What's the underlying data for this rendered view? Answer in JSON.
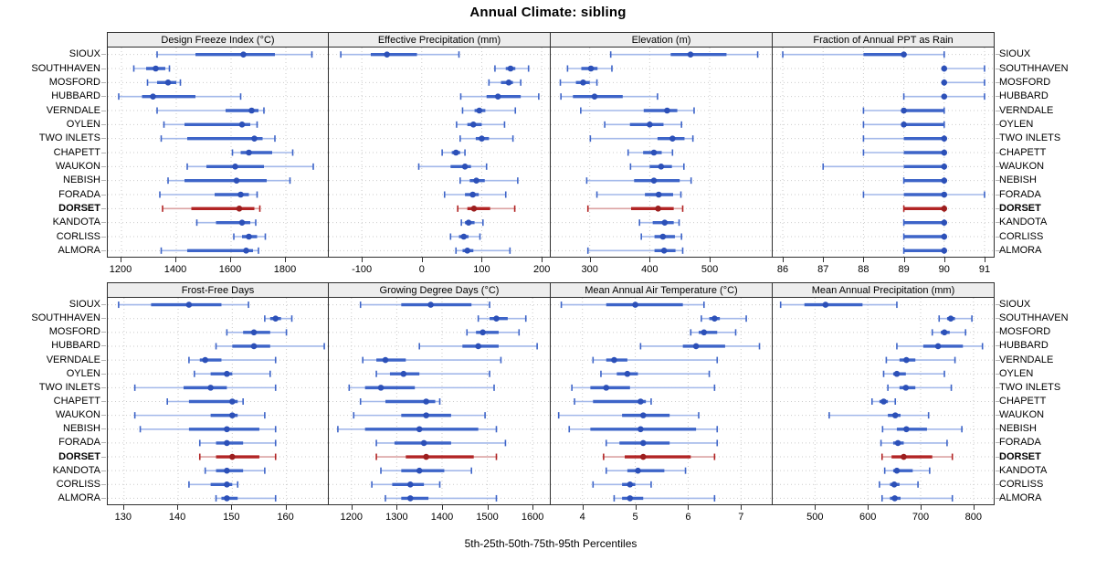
{
  "title": "Annual Climate: sibling",
  "xlabel": "5th-25th-50th-75th-95th Percentiles",
  "sites": [
    "SIOUX",
    "SOUTHHAVEN",
    "MOSFORD",
    "HUBBARD",
    "VERNDALE",
    "OYLEN",
    "TWO INLETS",
    "CHAPETT",
    "WAUKON",
    "NEBISH",
    "FORADA",
    "DORSET",
    "KANDOTA",
    "CORLISS",
    "ALMORA"
  ],
  "highlight_site": "DORSET",
  "colors": {
    "blue": "#3D64C8",
    "blue_light": "#A3B8EA",
    "blue_dark": "#2C50B8",
    "red": "#B22424",
    "red_light": "#DCA3A3",
    "red_dark": "#9C1E1E",
    "strip_bg": "#EDEDED",
    "panel_border": "#2F2F2F",
    "grid": "#CBCBCB",
    "stub": "#B4B4B4"
  },
  "chart_data": {
    "type": "dotplot-percentile-intervals",
    "percentile_labels": [
      "5th",
      "25th",
      "50th",
      "75th",
      "95th"
    ],
    "legend_note": "thin line = 5th-95th, thick line = 25th-75th, dot = 50th percentile",
    "grid": "dotted",
    "layout": {
      "rows": 2,
      "cols": 4
    },
    "panels": [
      {
        "title": "Design Freeze Index (°C)",
        "xlim": [
          1150,
          1960
        ],
        "ticks": [
          1200,
          1400,
          1600,
          1800
        ],
        "values": [
          [
            1330,
            1470,
            1645,
            1760,
            1895
          ],
          [
            1245,
            1290,
            1325,
            1360,
            1375
          ],
          [
            1295,
            1330,
            1370,
            1400,
            1415
          ],
          [
            1190,
            1275,
            1315,
            1470,
            1635
          ],
          [
            1330,
            1580,
            1675,
            1700,
            1720
          ],
          [
            1355,
            1430,
            1640,
            1670,
            1695
          ],
          [
            1345,
            1440,
            1685,
            1715,
            1760
          ],
          [
            1605,
            1635,
            1665,
            1750,
            1825
          ],
          [
            1440,
            1510,
            1615,
            1720,
            1900
          ],
          [
            1370,
            1430,
            1620,
            1730,
            1815
          ],
          [
            1340,
            1540,
            1635,
            1665,
            1695
          ],
          [
            1350,
            1455,
            1630,
            1685,
            1705
          ],
          [
            1475,
            1545,
            1640,
            1670,
            1690
          ],
          [
            1610,
            1640,
            1665,
            1695,
            1725
          ],
          [
            1345,
            1440,
            1655,
            1680,
            1700
          ]
        ]
      },
      {
        "title": "Effective Precipitation (mm)",
        "xlim": [
          -155,
          215
        ],
        "ticks": [
          -100,
          0,
          100,
          200
        ],
        "values": [
          [
            -135,
            -85,
            -58,
            -8,
            62
          ],
          [
            122,
            140,
            148,
            156,
            178
          ],
          [
            112,
            132,
            145,
            152,
            165
          ],
          [
            65,
            108,
            127,
            165,
            195
          ],
          [
            68,
            88,
            96,
            106,
            156
          ],
          [
            58,
            76,
            86,
            100,
            138
          ],
          [
            64,
            90,
            100,
            112,
            152
          ],
          [
            34,
            50,
            57,
            64,
            72
          ],
          [
            -5,
            48,
            72,
            82,
            108
          ],
          [
            64,
            80,
            91,
            105,
            160
          ],
          [
            38,
            72,
            85,
            95,
            140
          ],
          [
            60,
            76,
            87,
            114,
            155
          ],
          [
            66,
            72,
            78,
            88,
            102
          ],
          [
            48,
            62,
            70,
            78,
            97
          ],
          [
            57,
            68,
            76,
            86,
            147
          ]
        ]
      },
      {
        "title": "Elevation (m)",
        "xlim": [
          235,
          605
        ],
        "ticks": [
          300,
          400,
          500
        ],
        "values": [
          [
            335,
            435,
            468,
            528,
            580
          ],
          [
            263,
            286,
            302,
            313,
            337
          ],
          [
            251,
            277,
            289,
            300,
            312
          ],
          [
            252,
            272,
            308,
            355,
            413
          ],
          [
            285,
            390,
            429,
            446,
            474
          ],
          [
            325,
            367,
            400,
            423,
            453
          ],
          [
            301,
            413,
            438,
            458,
            472
          ],
          [
            364,
            389,
            407,
            420,
            438
          ],
          [
            368,
            400,
            419,
            437,
            457
          ],
          [
            295,
            374,
            407,
            450,
            469
          ],
          [
            312,
            392,
            415,
            439,
            452
          ],
          [
            297,
            369,
            414,
            440,
            455
          ],
          [
            383,
            405,
            425,
            440,
            449
          ],
          [
            386,
            408,
            422,
            442,
            453
          ],
          [
            297,
            408,
            424,
            443,
            455
          ]
        ]
      },
      {
        "title": "Fraction of Annual PPT as Rain",
        "xlim": [
          85.75,
          91.25
        ],
        "ticks": [
          86,
          87,
          88,
          89,
          90,
          91
        ],
        "values": [
          [
            86,
            88,
            89,
            89,
            90
          ],
          [
            90,
            90,
            90,
            90,
            91
          ],
          [
            90,
            90,
            90,
            90,
            91
          ],
          [
            89,
            90,
            90,
            90,
            91
          ],
          [
            88,
            89,
            89,
            90,
            90
          ],
          [
            88,
            89,
            89,
            90,
            90
          ],
          [
            88,
            89,
            90,
            90,
            90
          ],
          [
            88,
            89,
            90,
            90,
            90
          ],
          [
            87,
            89,
            90,
            90,
            90
          ],
          [
            89,
            89,
            90,
            90,
            90
          ],
          [
            88,
            89,
            90,
            90,
            91
          ],
          [
            89,
            89,
            90,
            90,
            90
          ],
          [
            89,
            89,
            90,
            90,
            90
          ],
          [
            89,
            89,
            90,
            90,
            90
          ],
          [
            89,
            89,
            90,
            90,
            90
          ]
        ]
      },
      {
        "title": "Frost-Free Days",
        "xlim": [
          127,
          168
        ],
        "ticks": [
          130,
          140,
          150,
          160
        ],
        "values": [
          [
            129,
            135,
            142,
            148,
            153
          ],
          [
            156,
            157,
            158,
            159,
            161
          ],
          [
            149,
            152,
            154,
            157,
            160
          ],
          [
            147,
            150,
            154,
            157,
            167
          ],
          [
            142,
            144,
            145,
            148,
            158
          ],
          [
            143,
            146,
            149,
            150,
            157
          ],
          [
            132,
            141,
            146,
            149,
            158
          ],
          [
            138,
            142,
            150,
            151,
            152
          ],
          [
            132,
            146,
            150,
            151,
            156
          ],
          [
            133,
            142,
            149,
            155,
            158
          ],
          [
            144,
            147,
            149,
            152,
            158
          ],
          [
            144,
            147,
            150,
            155,
            158
          ],
          [
            145,
            147,
            149,
            152,
            156
          ],
          [
            142,
            146,
            149,
            150,
            151
          ],
          [
            147,
            148,
            149,
            151,
            158
          ]
        ]
      },
      {
        "title": "Growing Degree Days (°C)",
        "xlim": [
          1150,
          1640
        ],
        "ticks": [
          1200,
          1300,
          1400,
          1500,
          1600
        ],
        "values": [
          [
            1220,
            1310,
            1375,
            1465,
            1505
          ],
          [
            1480,
            1505,
            1520,
            1545,
            1585
          ],
          [
            1455,
            1475,
            1490,
            1525,
            1570
          ],
          [
            1350,
            1445,
            1480,
            1525,
            1610
          ],
          [
            1225,
            1255,
            1275,
            1320,
            1530
          ],
          [
            1255,
            1285,
            1315,
            1350,
            1505
          ],
          [
            1195,
            1230,
            1265,
            1340,
            1515
          ],
          [
            1220,
            1275,
            1365,
            1385,
            1395
          ],
          [
            1205,
            1310,
            1365,
            1420,
            1495
          ],
          [
            1170,
            1230,
            1350,
            1480,
            1520
          ],
          [
            1255,
            1295,
            1360,
            1420,
            1540
          ],
          [
            1255,
            1320,
            1365,
            1470,
            1520
          ],
          [
            1265,
            1310,
            1350,
            1405,
            1465
          ],
          [
            1245,
            1290,
            1330,
            1360,
            1395
          ],
          [
            1275,
            1310,
            1330,
            1370,
            1520
          ]
        ]
      },
      {
        "title": "Mean Annual Air Temperature (°C)",
        "xlim": [
          3.4,
          7.6
        ],
        "ticks": [
          4,
          5,
          6,
          7
        ],
        "values": [
          [
            3.6,
            4.45,
            5.0,
            5.9,
            6.3
          ],
          [
            6.25,
            6.4,
            6.5,
            6.6,
            7.1
          ],
          [
            6.05,
            6.2,
            6.3,
            6.55,
            6.9
          ],
          [
            5.1,
            5.9,
            6.15,
            6.7,
            7.35
          ],
          [
            4.2,
            4.45,
            4.6,
            4.85,
            6.55
          ],
          [
            4.35,
            4.65,
            4.85,
            5.05,
            6.4
          ],
          [
            3.8,
            4.15,
            4.45,
            4.9,
            6.5
          ],
          [
            3.85,
            4.2,
            5.1,
            5.2,
            5.3
          ],
          [
            3.55,
            4.75,
            5.15,
            5.65,
            6.2
          ],
          [
            3.75,
            4.15,
            5.1,
            6.15,
            6.55
          ],
          [
            4.45,
            4.7,
            5.15,
            5.65,
            6.55
          ],
          [
            4.4,
            4.8,
            5.15,
            6.05,
            6.5
          ],
          [
            4.45,
            4.85,
            5.05,
            5.55,
            5.95
          ],
          [
            4.2,
            4.75,
            4.9,
            5.0,
            5.3
          ],
          [
            4.6,
            4.75,
            4.9,
            5.15,
            6.5
          ]
        ]
      },
      {
        "title": "Mean Annual Precipitation (mm)",
        "xlim": [
          420,
          840
        ],
        "ticks": [
          500,
          600,
          700,
          800
        ],
        "values": [
          [
            435,
            480,
            520,
            590,
            655
          ],
          [
            735,
            750,
            757,
            765,
            797
          ],
          [
            722,
            738,
            745,
            755,
            785
          ],
          [
            655,
            705,
            733,
            780,
            817
          ],
          [
            635,
            660,
            673,
            690,
            765
          ],
          [
            630,
            648,
            655,
            672,
            745
          ],
          [
            638,
            660,
            672,
            690,
            758
          ],
          [
            608,
            622,
            630,
            638,
            652
          ],
          [
            527,
            638,
            652,
            662,
            715
          ],
          [
            628,
            655,
            673,
            712,
            778
          ],
          [
            625,
            648,
            657,
            668,
            750
          ],
          [
            627,
            645,
            668,
            722,
            760
          ],
          [
            632,
            648,
            655,
            685,
            717
          ],
          [
            622,
            642,
            650,
            660,
            695
          ],
          [
            627,
            642,
            651,
            662,
            760
          ]
        ]
      }
    ]
  }
}
